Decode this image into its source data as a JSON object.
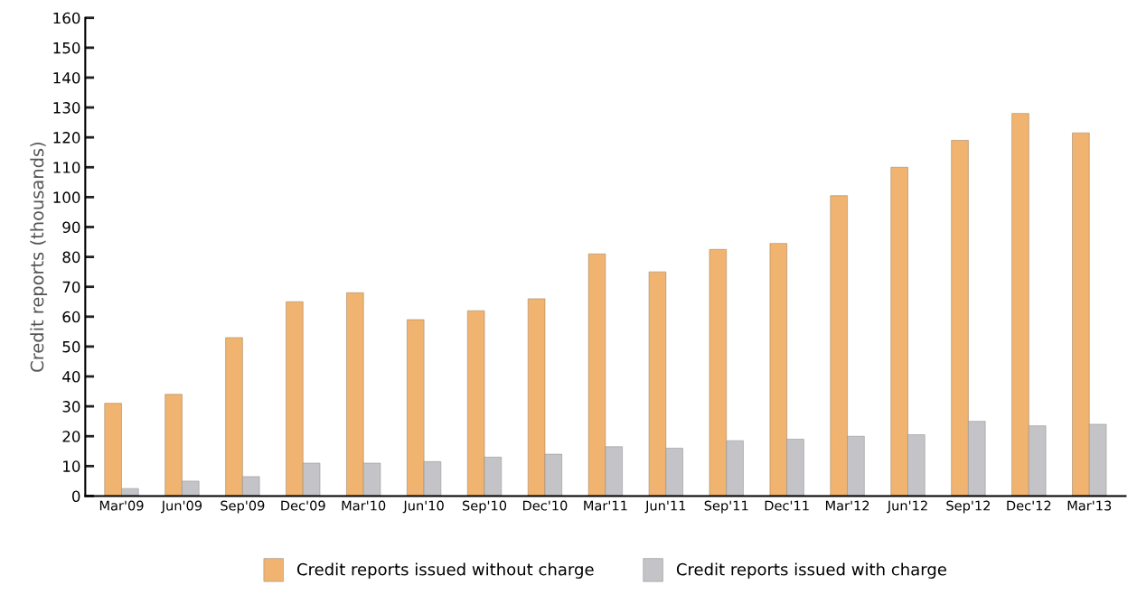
{
  "chart_data": {
    "type": "bar",
    "ylabel": "Credit reports (thousands)",
    "categories": [
      "Mar'09",
      "Jun'09",
      "Sep'09",
      "Dec'09",
      "Mar'10",
      "Jun'10",
      "Sep'10",
      "Dec'10",
      "Mar'11",
      "Jun'11",
      "Sep'11",
      "Dec'11",
      "Mar'12",
      "Jun'12",
      "Sep'12",
      "Dec'12",
      "Mar'13"
    ],
    "series": [
      {
        "name": "Credit reports issued without charge",
        "color": "#f0b470",
        "values": [
          31,
          34,
          53,
          65,
          68,
          59,
          62,
          66,
          81,
          75,
          82.5,
          84.5,
          100.5,
          110,
          119,
          128,
          121.5
        ]
      },
      {
        "name": "Credit reports issued with charge",
        "color": "#c4c4c8",
        "values": [
          2.5,
          5,
          6.5,
          11,
          11,
          11.5,
          13,
          14,
          16.5,
          16,
          18.5,
          19,
          20,
          20.5,
          25,
          23.5,
          24
        ]
      }
    ],
    "ylim": [
      0,
      160
    ],
    "yticks": [
      0,
      10,
      20,
      30,
      40,
      50,
      60,
      70,
      80,
      90,
      100,
      110,
      120,
      130,
      140,
      150,
      160
    ],
    "grid": false,
    "legend": "bottom"
  }
}
